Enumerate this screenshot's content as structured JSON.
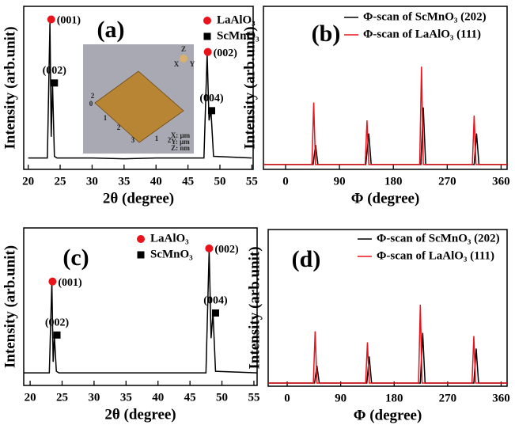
{
  "chart_data": [
    {
      "type": "line",
      "panel": "(a)",
      "xlabel": "2θ (degree)",
      "ylabel": "Intensity (arb.unit)",
      "xlim": [
        19.3,
        55.2
      ],
      "xticks": [
        20,
        25,
        30,
        35,
        40,
        45,
        50,
        55
      ],
      "ylim": [
        0,
        100
      ],
      "series": [
        {
          "color": "#000000",
          "x": [
            20,
            23.0,
            23.4,
            23.6,
            23.8,
            24.1,
            24.5,
            30,
            35,
            40,
            45,
            47.5,
            48.0,
            48.3,
            48.6,
            49.0,
            55
          ],
          "values": [
            7,
            7,
            90,
            20,
            53,
            8,
            7,
            7,
            6.5,
            7,
            7,
            7,
            71,
            30,
            36,
            8,
            7
          ]
        }
      ],
      "markers": [
        {
          "name": "LaAlO₃",
          "color": "#e8141c",
          "shape": "circle",
          "x": [
            23.6,
            48.1
          ],
          "y": [
            92,
            72
          ],
          "labels": [
            "(001)",
            "(002)"
          ]
        },
        {
          "name": "ScMnO₃",
          "color": "#000000",
          "shape": "square",
          "x": [
            24.1,
            48.7
          ],
          "y": [
            53,
            36
          ],
          "labels": [
            "(002)",
            "(004)"
          ]
        }
      ],
      "inset": [
        "Z",
        "X",
        "Y",
        "2",
        "0",
        "1",
        "2",
        "3",
        "1",
        "2",
        "X: μm",
        "Y: μm",
        "Z: nm"
      ]
    },
    {
      "type": "line",
      "panel": "(b)",
      "xlabel": "Φ (degree)",
      "ylabel": "Intensity (arb.unit)",
      "xlim": [
        -37,
        370
      ],
      "xticks": [
        0,
        90,
        180,
        270,
        360
      ],
      "ylim": [
        0,
        100
      ],
      "series": [
        {
          "name": "Φ-scan of ScMnO₃ (202)",
          "color": "#000000",
          "x": [
            -37,
            46,
            50,
            54,
            134,
            139,
            143,
            226,
            230,
            234,
            315,
            319,
            323,
            370
          ],
          "values": [
            3,
            3,
            15,
            3,
            3,
            22,
            3,
            3,
            38,
            3,
            3,
            22,
            3,
            3
          ]
        },
        {
          "name": "Φ-scan of LaAlO₃  (111)",
          "color": "#e8141c",
          "x": [
            -37,
            44,
            47,
            50,
            133,
            136,
            139,
            224,
            227,
            230,
            312,
            315,
            318,
            370
          ],
          "values": [
            3,
            3,
            41,
            3,
            3,
            30,
            3,
            3,
            63,
            3,
            3,
            33,
            3,
            3
          ]
        }
      ]
    },
    {
      "type": "line",
      "panel": "(c)",
      "xlabel": "2θ (degree)",
      "ylabel": "Intensity (arb.unit)",
      "xlim": [
        19,
        55.5
      ],
      "xticks": [
        20,
        25,
        30,
        35,
        40,
        45,
        50,
        55
      ],
      "ylim": [
        0,
        100
      ],
      "series": [
        {
          "color": "#000000",
          "x": [
            19,
            23.0,
            23.4,
            23.6,
            23.8,
            24.1,
            24.5,
            30,
            35,
            40,
            45,
            47.5,
            48.0,
            48.3,
            48.6,
            49.0,
            55.5
          ],
          "values": [
            8,
            8,
            66,
            15,
            31,
            9,
            8,
            8,
            8,
            8,
            8,
            8,
            86,
            30,
            46,
            9,
            8
          ]
        }
      ],
      "markers": [
        {
          "name": "LaAlO₃",
          "color": "#e8141c",
          "shape": "circle",
          "x": [
            23.5,
            48.0
          ],
          "y": [
            66,
            87
          ],
          "labels": [
            "(001)",
            "(002)"
          ]
        },
        {
          "name": "ScMnO₃",
          "color": "#000000",
          "shape": "square",
          "x": [
            24.2,
            49.0
          ],
          "y": [
            32,
            46
          ],
          "labels": [
            "(002)",
            "(004)"
          ]
        }
      ]
    },
    {
      "type": "line",
      "panel": "(d)",
      "xlabel": "Φ (degree)",
      "ylabel": "Intensity (arb.unit)",
      "xlim": [
        -32,
        370
      ],
      "xticks": [
        0,
        90,
        180,
        270,
        360
      ],
      "ylim": [
        0,
        100
      ],
      "series": [
        {
          "name": "Φ-scan of ScMnO₃ (202)",
          "color": "#000000",
          "x": [
            -32,
            46,
            50,
            54,
            134,
            138,
            142,
            224,
            228,
            232,
            314,
            318,
            322,
            370
          ],
          "values": [
            2,
            2,
            13,
            2,
            2,
            19,
            2,
            2,
            34,
            2,
            2,
            24,
            2,
            2
          ]
        },
        {
          "name": "Φ-scan of LaAlO₃  (111)",
          "color": "#e8141c",
          "x": [
            -32,
            44,
            47,
            50,
            132,
            135,
            138,
            221,
            224,
            227,
            311,
            314,
            317,
            370
          ],
          "values": [
            2,
            2,
            35,
            2,
            2,
            28,
            2,
            2,
            52,
            2,
            2,
            32,
            2,
            2
          ]
        }
      ]
    }
  ]
}
